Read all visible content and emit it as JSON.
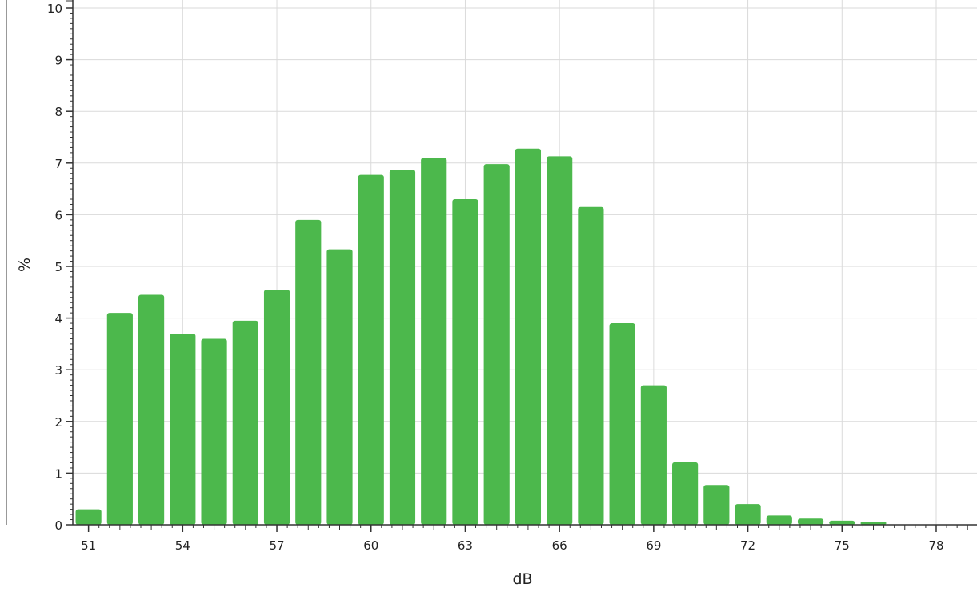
{
  "chart_data": {
    "type": "bar",
    "title": "",
    "xlabel": "dB",
    "ylabel": "%",
    "xlim": [
      50.5,
      79.3
    ],
    "ylim": [
      0,
      10
    ],
    "x_ticks": [
      "51",
      "54",
      "57",
      "60",
      "63",
      "66",
      "69",
      "72",
      "75",
      "78"
    ],
    "y_ticks": [
      "0",
      "1",
      "2",
      "3",
      "4",
      "5",
      "6",
      "7",
      "8",
      "9",
      "10"
    ],
    "grid": true,
    "bar_color": "#4cb84c",
    "categories": [
      51,
      52,
      53,
      54,
      55,
      56,
      57,
      58,
      59,
      60,
      61,
      62,
      63,
      64,
      65,
      66,
      67,
      68,
      69,
      70,
      71,
      72,
      73,
      74,
      75,
      76
    ],
    "values": [
      0.3,
      4.1,
      4.45,
      3.7,
      3.6,
      3.95,
      4.55,
      5.9,
      5.33,
      6.77,
      6.87,
      7.1,
      6.3,
      6.98,
      7.28,
      7.13,
      6.15,
      3.9,
      2.7,
      1.21,
      0.77,
      0.4,
      0.18,
      0.12,
      0.08,
      0.06
    ]
  }
}
